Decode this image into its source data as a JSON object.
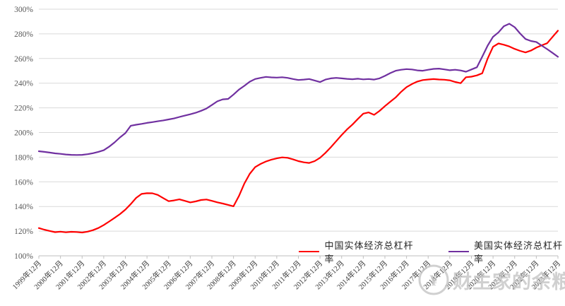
{
  "chart_data": {
    "type": "line",
    "x_tick_labels": [
      "1999年12月",
      "2000年12月",
      "2001年12月",
      "2002年12月",
      "2003年12月",
      "2004年12月",
      "2005年12月",
      "2006年12月",
      "2007年12月",
      "2008年12月",
      "2009年12月",
      "2010年12月",
      "2011年12月",
      "2012年12月",
      "2013年12月",
      "2014年12月",
      "2015年12月",
      "2016年12月",
      "2017年12月",
      "2018年12月",
      "2019年12月",
      "2020年12月",
      "2021年12月",
      "2022年12月",
      "2023年12月"
    ],
    "points_per_interval": 4,
    "x_frequency": "quarterly",
    "ylim": [
      100,
      300
    ],
    "y_tick_values": [
      100,
      120,
      140,
      160,
      180,
      200,
      220,
      240,
      260,
      280,
      300
    ],
    "y_tick_suffix": "%",
    "grid": "horizontal",
    "legend_position": "bottom",
    "series": [
      {
        "name": "中国实体经济总杠杆率",
        "color": "#ff0000",
        "values": [
          122.5,
          121.2,
          120.2,
          119.2,
          119.6,
          119.1,
          119.5,
          119.3,
          118.9,
          119.6,
          120.8,
          122.5,
          125.0,
          127.8,
          130.8,
          133.8,
          137.5,
          142.0,
          147.0,
          150.2,
          150.8,
          150.7,
          149.4,
          146.8,
          144.3,
          144.9,
          145.8,
          144.6,
          143.3,
          144.1,
          145.3,
          145.7,
          144.6,
          143.4,
          142.4,
          141.3,
          140.2,
          148.5,
          158.5,
          166.5,
          172.0,
          174.5,
          176.5,
          178.0,
          179.0,
          179.8,
          179.5,
          178.3,
          176.8,
          175.8,
          175.3,
          176.8,
          179.5,
          183.5,
          188.0,
          193.0,
          198.0,
          202.5,
          206.5,
          211.0,
          215.3,
          216.3,
          214.3,
          217.5,
          221.4,
          225.0,
          228.5,
          233.0,
          236.8,
          239.3,
          241.3,
          242.5,
          243.0,
          243.3,
          243.0,
          242.8,
          242.3,
          241.0,
          240.0,
          244.8,
          245.3,
          246.3,
          248.0,
          260.0,
          269.5,
          272.2,
          271.2,
          269.8,
          267.8,
          266.2,
          264.9,
          266.4,
          268.8,
          270.7,
          272.4,
          277.5,
          282.6
        ]
      },
      {
        "name": "美国实体经济总杠杆率",
        "color": "#7030a0",
        "values": [
          184.8,
          184.3,
          183.7,
          183.1,
          182.7,
          182.2,
          181.9,
          181.8,
          181.9,
          182.4,
          183.2,
          184.3,
          185.6,
          188.5,
          192.0,
          196.0,
          199.5,
          205.5,
          206.3,
          207.0,
          207.8,
          208.4,
          209.1,
          209.8,
          210.6,
          211.4,
          212.6,
          213.7,
          214.8,
          216.0,
          217.6,
          219.4,
          222.3,
          225.3,
          226.9,
          227.2,
          230.8,
          234.8,
          237.8,
          241.2,
          243.4,
          244.3,
          245.1,
          244.7,
          244.5,
          244.8,
          244.3,
          243.4,
          242.6,
          242.9,
          243.4,
          242.2,
          240.9,
          242.9,
          243.9,
          244.3,
          243.9,
          243.5,
          243.2,
          243.6,
          243.1,
          243.4,
          242.9,
          243.9,
          245.9,
          248.2,
          250.1,
          250.9,
          251.4,
          251.1,
          250.4,
          250.1,
          250.9,
          251.6,
          251.8,
          251.2,
          250.5,
          250.9,
          250.3,
          249.3,
          251.1,
          252.9,
          261.5,
          270.5,
          277.6,
          281.2,
          286.2,
          288.2,
          285.4,
          280.3,
          275.8,
          274.2,
          273.4,
          270.5,
          267.6,
          264.6,
          261.4
        ]
      }
    ],
    "colors": {
      "gridline": "#d9d9d9",
      "axis": "#bfbfbf",
      "y_label": "#595959",
      "x_label": "#3f3f3f"
    }
  },
  "legend": {
    "items": [
      {
        "label": "中国实体经济总杠杆率",
        "color": "#ff0000"
      },
      {
        "label": "美国实体经济总杠杆率",
        "color": "#7030a0"
      }
    ]
  },
  "watermark": {
    "text": "财主家的余粮",
    "logo_icon": "¥",
    "color": "#c6c6c6"
  }
}
